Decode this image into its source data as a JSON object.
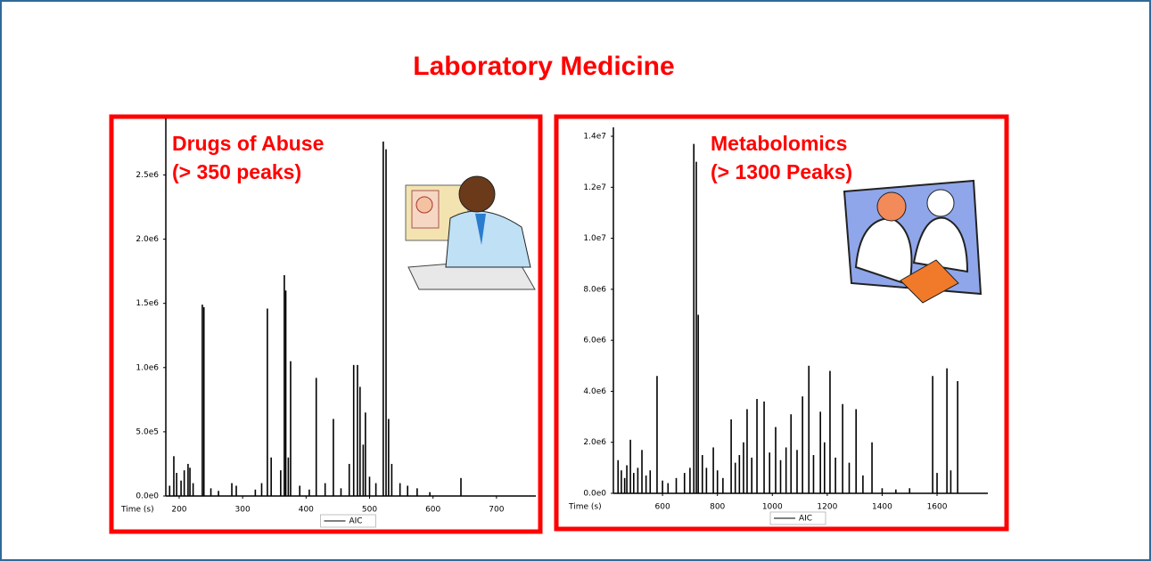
{
  "title": "Laboratory Medicine",
  "chart_data": [
    {
      "type": "stem",
      "annotations": [
        "Drugs of Abuse",
        "(> 350 peaks)"
      ],
      "x_label": "Time (s)",
      "xlim": [
        179,
        762
      ],
      "xticks": [
        200,
        300,
        400,
        500,
        600,
        700
      ],
      "ylim": [
        0,
        2940000
      ],
      "yticks": [
        {
          "value": 0,
          "label": "0.0e0"
        },
        {
          "value": 500000,
          "label": "5.0e5"
        },
        {
          "value": 1000000,
          "label": "1.0e6"
        },
        {
          "value": 1500000,
          "label": "1.5e6"
        },
        {
          "value": 2000000,
          "label": "2.0e6"
        },
        {
          "value": 2500000,
          "label": "2.5e6"
        }
      ],
      "x": [
        185,
        191.6,
        196,
        203,
        208,
        214,
        217,
        222,
        236.5,
        239,
        250,
        262,
        283,
        290,
        320,
        330,
        339,
        345,
        360,
        365.7,
        368,
        372,
        375.6,
        390,
        405,
        416,
        430,
        443,
        455,
        468,
        475,
        481,
        485,
        490,
        493.5,
        500,
        510,
        521.6,
        526,
        530,
        535,
        548,
        560,
        575,
        595,
        644
      ],
      "series": [
        {
          "name": "AIC",
          "color": "#000000",
          "values": [
            80000,
            310000,
            180000,
            120000,
            200000,
            250000,
            220000,
            100000,
            1490000,
            1470000,
            60000,
            40000,
            100000,
            80000,
            50000,
            100000,
            1460000,
            300000,
            200000,
            1720000,
            1600000,
            300000,
            1050000,
            80000,
            50000,
            920000,
            100000,
            600000,
            60000,
            250000,
            1020000,
            1020000,
            850000,
            400000,
            650000,
            150000,
            100000,
            2760000,
            2700000,
            600000,
            250000,
            100000,
            80000,
            60000,
            30000,
            140000
          ]
        }
      ]
    },
    {
      "type": "stem",
      "annotations": [
        "Metabolomics",
        "(> 1300 Peaks)"
      ],
      "x_label": "Time (s)",
      "xlim": [
        421,
        1785
      ],
      "xticks": [
        600,
        800,
        1000,
        1200,
        1400,
        1600
      ],
      "ylim": [
        0,
        14350000
      ],
      "yticks": [
        {
          "value": 0,
          "label": "0.0e0"
        },
        {
          "value": 2000000,
          "label": "2.0e6"
        },
        {
          "value": 4000000,
          "label": "4.0e6"
        },
        {
          "value": 6000000,
          "label": "6.0e6"
        },
        {
          "value": 8000000,
          "label": "8.0e6"
        },
        {
          "value": 10000000,
          "label": "1.0e7"
        },
        {
          "value": 12000000,
          "label": "1.2e7"
        },
        {
          "value": 14000000,
          "label": "1.4e7"
        }
      ],
      "x": [
        438,
        450,
        462,
        470,
        483,
        495,
        510,
        525,
        540,
        555,
        580,
        600,
        620,
        650,
        680,
        700,
        714,
        723,
        730,
        745,
        760,
        785,
        800,
        820,
        850,
        865,
        880,
        895,
        908,
        925,
        944,
        970,
        990,
        1012,
        1030,
        1050,
        1068,
        1090,
        1110,
        1133,
        1150,
        1175,
        1190,
        1210,
        1230,
        1256,
        1280,
        1305,
        1330,
        1363,
        1400,
        1450,
        1500,
        1584,
        1600,
        1636,
        1650,
        1675
      ],
      "series": [
        {
          "name": "AIC",
          "color": "#000000",
          "values": [
            1300000,
            900000,
            600000,
            1100000,
            2100000,
            800000,
            1000000,
            1700000,
            700000,
            900000,
            4600000,
            500000,
            400000,
            600000,
            800000,
            1000000,
            13700000,
            13000000,
            7000000,
            1500000,
            1000000,
            1800000,
            900000,
            600000,
            2900000,
            1200000,
            1500000,
            2000000,
            3300000,
            1400000,
            3700000,
            3600000,
            1600000,
            2600000,
            1300000,
            1800000,
            3100000,
            1700000,
            3800000,
            5000000,
            1500000,
            3200000,
            2000000,
            4800000,
            1400000,
            3500000,
            1200000,
            3300000,
            700000,
            2000000,
            200000,
            150000,
            200000,
            4600000,
            800000,
            4900000,
            900000,
            4400000
          ]
        }
      ]
    }
  ]
}
